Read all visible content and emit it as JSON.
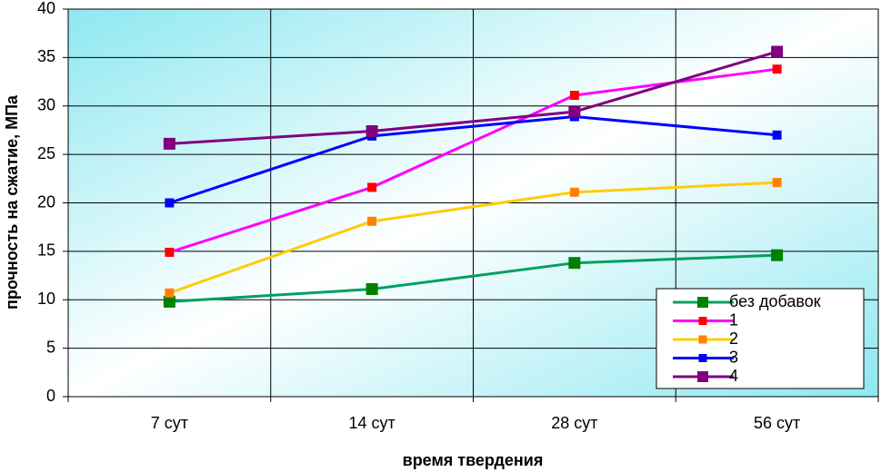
{
  "chart_data": {
    "type": "line",
    "x_label": "время твердения",
    "y_label": "прочность на сжатие, МПа",
    "categories": [
      "7 сут",
      "14 сут",
      "28 сут",
      "56 сут"
    ],
    "series": [
      {
        "name": "без добавок",
        "color": "#00a060",
        "marker_color": "#008000",
        "values": [
          9.8,
          11.1,
          13.8,
          14.6
        ]
      },
      {
        "name": "1",
        "color": "#ff00ff",
        "marker_color": "#ff0000",
        "values": [
          14.9,
          21.6,
          31.1,
          33.8
        ]
      },
      {
        "name": "2",
        "color": "#ffcc00",
        "marker_color": "#ff8000",
        "values": [
          10.7,
          18.1,
          21.1,
          22.1
        ]
      },
      {
        "name": "3",
        "color": "#0000ff",
        "marker_color": "#0000ff",
        "values": [
          20.0,
          26.9,
          28.9,
          27.0
        ]
      },
      {
        "name": "4",
        "color": "#800080",
        "marker_color": "#800080",
        "values": [
          26.1,
          27.4,
          29.4,
          35.6
        ]
      }
    ],
    "ylim": [
      0,
      40
    ],
    "yticks": [
      0,
      5,
      10,
      15,
      20,
      25,
      30,
      35,
      40
    ],
    "grid": true,
    "legend": "lower right"
  }
}
